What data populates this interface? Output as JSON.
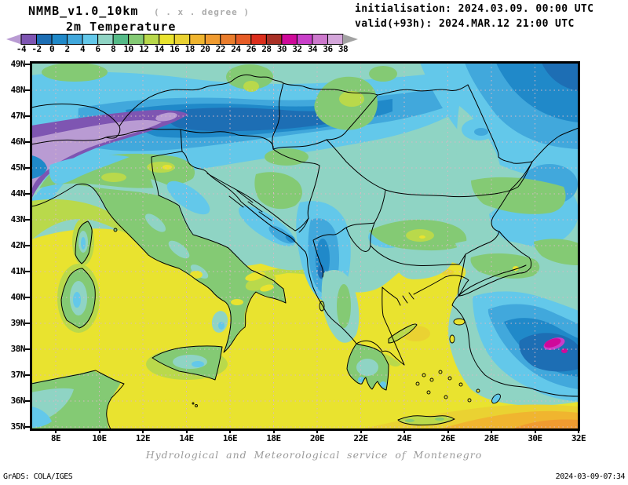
{
  "header": {
    "model_title": "NMMB_v1.0_10km",
    "model_note": "( . x . degree )",
    "field_title": "2m Temperature",
    "init_line": "initialisation: 2024.03.09. 00:00 UTC",
    "valid_line": "valid(+93h): 2024.MAR.12 21:00 UTC"
  },
  "colorbar": {
    "tick_labels": [
      "-4",
      "-2",
      "0",
      "2",
      "4",
      "6",
      "8",
      "10",
      "12",
      "14",
      "16",
      "18",
      "20",
      "22",
      "24",
      "26",
      "28",
      "30",
      "32",
      "34",
      "36",
      "38"
    ],
    "segment_colors": [
      "#7e55b2",
      "#1d6eb4",
      "#2089c9",
      "#41a8dc",
      "#63c8ea",
      "#8fd4c4",
      "#55bb88",
      "#84ca74",
      "#b9d94b",
      "#e9e32f",
      "#ead232",
      "#f0b52f",
      "#f09b30",
      "#ea7d2c",
      "#e65c26",
      "#dc2f1d",
      "#a93026",
      "#cf0a9a",
      "#c93fc9",
      "#cd79cd",
      "#d4a6da"
    ],
    "left_arrow_color": "#b99bd3",
    "right_arrow_color": "#a2a2a2"
  },
  "map_axes": {
    "lat_labels": [
      "49N",
      "48N",
      "47N",
      "46N",
      "45N",
      "44N",
      "43N",
      "42N",
      "41N",
      "40N",
      "39N",
      "38N",
      "37N",
      "36N",
      "35N"
    ],
    "lon_labels": [
      "8E",
      "10E",
      "12E",
      "14E",
      "16E",
      "18E",
      "20E",
      "22E",
      "24E",
      "26E",
      "28E",
      "30E",
      "32E"
    ]
  },
  "map_style": {
    "grid_color": "#d9b8c4",
    "border_color": "#000000",
    "background": "#ffffff"
  },
  "footer": {
    "service_line": "Hydrological and Meteorological service of Montenegro",
    "grads_credit": "GrADS: COLA/IGES",
    "timestamp": "2024-03-09-07:34"
  }
}
